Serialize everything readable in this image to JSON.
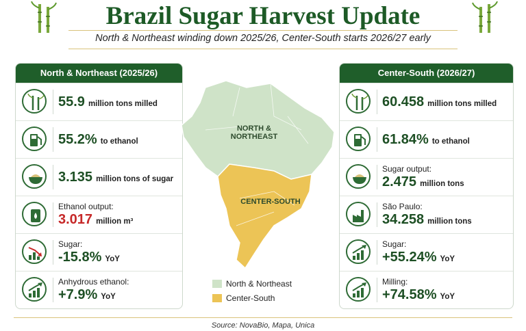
{
  "header": {
    "title": "Brazil Sugar Harvest Update",
    "subtitle": "North & Northeast winding down 2025/26, Center-South starts 2026/27 early"
  },
  "left": {
    "title": "North & Northeast (2025/26)",
    "items": [
      {
        "value": "55.9",
        "unit": "million tons milled"
      },
      {
        "value": "55.2%",
        "unit": "to ethanol"
      },
      {
        "value": "3.135",
        "unit": "million tons of sugar"
      },
      {
        "label": "Ethanol output:",
        "value": "3.017",
        "unit": "million m³"
      },
      {
        "label": "Sugar:",
        "value": "-15.8%",
        "unit": "YoY"
      },
      {
        "label": "Anhydrous ethanol:",
        "value": "+7.9%",
        "unit": "YoY"
      }
    ]
  },
  "right": {
    "title": "Center-South (2026/27)",
    "items": [
      {
        "value": "60.458",
        "unit": "million tons milled"
      },
      {
        "value": "61.84%",
        "unit": "to ethanol"
      },
      {
        "label": "Sugar output:",
        "value": "2.475",
        "unit": "million tons"
      },
      {
        "label": "São Paulo:",
        "value": "34.258",
        "unit": "million tons"
      },
      {
        "label": "Sugar:",
        "value": "+55.24%",
        "unit": "YoY"
      },
      {
        "label": "Milling:",
        "value": "+74.58%",
        "unit": "YoY"
      }
    ]
  },
  "map": {
    "north_label": "NORTH & NORTHEAST",
    "south_label": "CENTER-SOUTH",
    "legend": [
      "North & Northeast",
      "Center-South"
    ]
  },
  "source": "Source: NovaBio, Mapa, Unica"
}
